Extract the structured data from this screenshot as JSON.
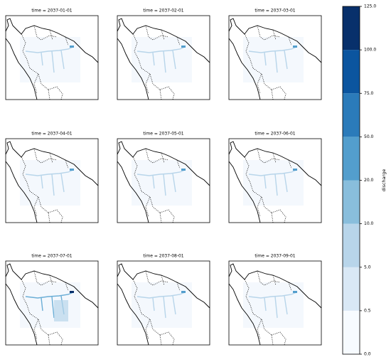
{
  "panels": [
    {
      "title": "time = 2037-01-01"
    },
    {
      "title": "time = 2037-02-01"
    },
    {
      "title": "time = 2037-03-01"
    },
    {
      "title": "time = 2037-04-01"
    },
    {
      "title": "time = 2037-05-01"
    },
    {
      "title": "time = 2037-06-01"
    },
    {
      "title": "time = 2037-07-01"
    },
    {
      "title": "time = 2037-08-01"
    },
    {
      "title": "time = 2037-09-01"
    }
  ],
  "colorbar": {
    "label": "discharge",
    "colors": [
      "#f7fbff",
      "#d9e8f5",
      "#b8d5ea",
      "#89bedc",
      "#539ecd",
      "#2b7bba",
      "#0b559f",
      "#08306b"
    ],
    "ticks": [
      {
        "value": 0,
        "label": "0.0"
      },
      {
        "value": 0.5,
        "label": "0.5"
      },
      {
        "value": 5,
        "label": "5.0"
      },
      {
        "value": 10,
        "label": "10.0"
      },
      {
        "value": 20,
        "label": "20.0"
      },
      {
        "value": 50,
        "label": "50.0"
      },
      {
        "value": 75,
        "label": "75.0"
      },
      {
        "value": 100,
        "label": "100.0"
      },
      {
        "value": 125,
        "label": "125.0"
      }
    ]
  }
}
